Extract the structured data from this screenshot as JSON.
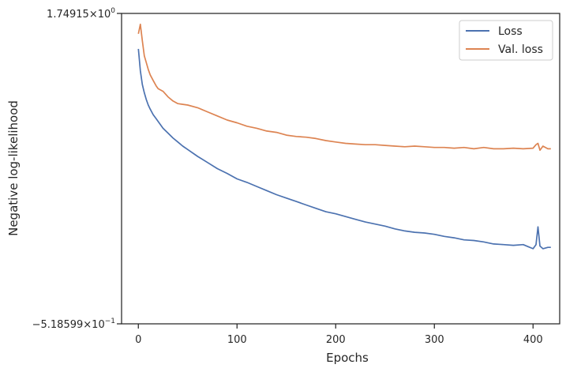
{
  "chart_data": {
    "type": "line",
    "title": "",
    "xlabel": "Epochs",
    "ylabel": "Negative log-likelihood",
    "xlim": [
      -17,
      427
    ],
    "ylim": [
      -0.518599,
      1.74915
    ],
    "yscale": "symlog",
    "x_ticks": [
      0,
      100,
      200,
      300,
      400
    ],
    "y_tick_labels": [
      {
        "value": 1.74915,
        "mantissa": "1.74915",
        "base": "10",
        "exponent": "0",
        "sign": ""
      },
      {
        "value": -0.518599,
        "mantissa": "5.18599",
        "base": "10",
        "exponent": "−1",
        "sign": "−"
      }
    ],
    "grid": false,
    "legend_position": "top-right",
    "series": [
      {
        "name": "Loss",
        "color": "#4c72b0",
        "x": [
          0,
          2,
          4,
          6,
          8,
          10,
          12,
          15,
          18,
          20,
          25,
          30,
          35,
          40,
          45,
          50,
          60,
          70,
          80,
          90,
          100,
          110,
          120,
          130,
          140,
          150,
          160,
          170,
          180,
          190,
          200,
          210,
          220,
          230,
          240,
          250,
          260,
          270,
          280,
          290,
          300,
          310,
          320,
          330,
          340,
          350,
          360,
          370,
          380,
          390,
          395,
          400,
          403,
          405,
          407,
          410,
          415,
          418
        ],
        "y": [
          1.49,
          1.33,
          1.23,
          1.17,
          1.12,
          1.08,
          1.05,
          1.01,
          0.98,
          0.96,
          0.91,
          0.875,
          0.84,
          0.81,
          0.78,
          0.755,
          0.705,
          0.66,
          0.615,
          0.58,
          0.54,
          0.515,
          0.485,
          0.455,
          0.425,
          0.4,
          0.375,
          0.35,
          0.325,
          0.3,
          0.285,
          0.265,
          0.245,
          0.225,
          0.21,
          0.195,
          0.175,
          0.16,
          0.15,
          0.145,
          0.135,
          0.12,
          0.11,
          0.095,
          0.09,
          0.08,
          0.065,
          0.06,
          0.055,
          0.06,
          0.045,
          0.03,
          0.06,
          0.19,
          0.05,
          0.03,
          0.04,
          0.04
        ]
      },
      {
        "name": "Val. loss",
        "color": "#dd8452",
        "x": [
          0,
          2,
          4,
          6,
          8,
          10,
          12,
          15,
          18,
          20,
          25,
          30,
          35,
          40,
          45,
          50,
          60,
          70,
          80,
          90,
          100,
          110,
          120,
          130,
          140,
          150,
          160,
          170,
          180,
          190,
          200,
          210,
          220,
          230,
          240,
          250,
          260,
          270,
          280,
          290,
          300,
          310,
          320,
          330,
          340,
          350,
          360,
          370,
          380,
          390,
          400,
          403,
          405,
          407,
          410,
          415,
          418
        ],
        "y": [
          1.6,
          1.67,
          1.55,
          1.44,
          1.39,
          1.34,
          1.3,
          1.26,
          1.22,
          1.2,
          1.18,
          1.14,
          1.11,
          1.09,
          1.085,
          1.08,
          1.06,
          1.03,
          1.0,
          0.97,
          0.95,
          0.925,
          0.91,
          0.89,
          0.88,
          0.86,
          0.85,
          0.845,
          0.835,
          0.82,
          0.81,
          0.8,
          0.795,
          0.79,
          0.79,
          0.785,
          0.78,
          0.775,
          0.78,
          0.775,
          0.77,
          0.77,
          0.765,
          0.77,
          0.76,
          0.77,
          0.76,
          0.76,
          0.765,
          0.76,
          0.765,
          0.79,
          0.8,
          0.75,
          0.78,
          0.76,
          0.76
        ]
      }
    ]
  }
}
